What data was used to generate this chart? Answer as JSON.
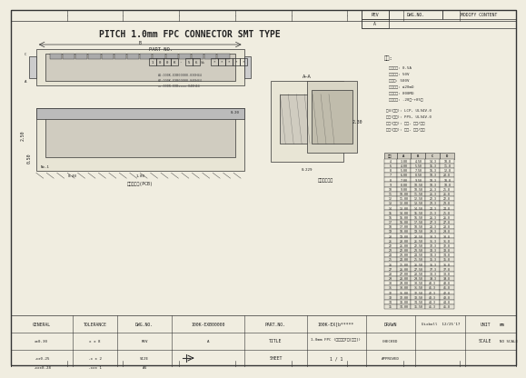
{
  "title": "PITCH 1.0mm FPC CONNECTOR SMT TYPE",
  "bg_color": "#f0ede0",
  "border_color": "#333333",
  "specs": [
    "额定电流: 0.5A",
    "额定电压: 50V",
    "耐电压: 500V",
    "接触电阻: ≤20mΩ",
    "绝缘电阻: 800MΩ",
    "工作温度: -20℃~+85℃"
  ],
  "materials": [
    "富4(材料): LCP, UL94V-0",
    "富体(材料): PPS, UL94V-0",
    "端子(材料): 黄铜, 锑銀/错金",
    "夹片(材料): 黄铜, 锑銀/错金"
  ],
  "table_header": [
    "数量",
    "A",
    "B",
    "C",
    "D"
  ],
  "table_data": [
    [
      "4",
      "3.00",
      "4.50",
      "14.3",
      "18.8"
    ],
    [
      "6",
      "4.00",
      "5.50",
      "15.3",
      "11.8"
    ],
    [
      "8",
      "5.00",
      "7.50",
      "16.3",
      "12.8"
    ],
    [
      "7",
      "6.00",
      "8.50",
      "18.3",
      "20.8"
    ],
    [
      "8",
      "7.00",
      "9.50",
      "18.3",
      "18.8"
    ],
    [
      "9",
      "8.00",
      "10.50",
      "18.3",
      "18.8"
    ],
    [
      "10",
      "9.00",
      "10.50",
      "21.3",
      "25.8"
    ],
    [
      "11",
      "10.00",
      "11.50",
      "21.3",
      "21.8"
    ],
    [
      "12",
      "11.00",
      "12.50",
      "22.3",
      "22.8"
    ],
    [
      "13",
      "12.00",
      "13.50",
      "23.3",
      "23.8"
    ],
    [
      "14",
      "13.00",
      "14.50",
      "24.3",
      "24.8"
    ],
    [
      "15",
      "14.00",
      "15.50",
      "25.3",
      "25.8"
    ],
    [
      "16",
      "15.00",
      "16.50",
      "26.3",
      "26.8"
    ],
    [
      "17",
      "16.00",
      "17.50",
      "27.3",
      "27.8"
    ],
    [
      "18",
      "17.00",
      "18.50",
      "28.3",
      "28.8"
    ],
    [
      "19",
      "18.00",
      "19.50",
      "29.3",
      "29.8"
    ],
    [
      "20",
      "19.00",
      "20.50",
      "30.3",
      "30.8"
    ],
    [
      "21",
      "20.00",
      "21.50",
      "31.3",
      "31.8"
    ],
    [
      "22",
      "21.00",
      "22.50",
      "32.3",
      "32.8"
    ],
    [
      "23",
      "22.00",
      "23.50",
      "33.3",
      "33.8"
    ],
    [
      "24",
      "23.00",
      "24.50",
      "34.3",
      "34.8"
    ],
    [
      "25",
      "24.00",
      "25.50",
      "35.3",
      "35.8"
    ],
    [
      "26",
      "25.00",
      "26.50",
      "36.3",
      "36.8"
    ],
    [
      "27",
      "26.00",
      "27.50",
      "37.3",
      "37.8"
    ],
    [
      "28",
      "27.00",
      "28.50",
      "38.3",
      "38.8"
    ],
    [
      "29",
      "28.00",
      "29.50",
      "39.3",
      "39.8"
    ],
    [
      "30",
      "29.00",
      "30.50",
      "40.3",
      "40.8"
    ],
    [
      "31",
      "30.00",
      "31.50",
      "41.3",
      "41.8"
    ],
    [
      "32",
      "31.00",
      "32.50",
      "42.3",
      "42.8"
    ],
    [
      "33",
      "32.00",
      "33.50",
      "43.3",
      "43.8"
    ],
    [
      "34",
      "33.00",
      "34.50",
      "44.3",
      "44.8"
    ],
    [
      "35",
      "34.00",
      "35.50",
      "45.3",
      "45.8"
    ]
  ],
  "footer_left": [
    [
      "GENERAL",
      "TOLERANCE",
      "DWG.NO.",
      "100K-EXB00000"
    ],
    [
      "x±0.30",
      "x ± 8",
      "REV",
      "A"
    ],
    [
      ".x±0.25",
      ".x ± 2",
      "SIZE",
      ""
    ],
    [
      ".xx±0.28",
      ".xx± 1",
      "A4",
      ""
    ]
  ],
  "footer_part": [
    "PART.NO.",
    "100K-EX[b*****"
  ],
  "footer_title": [
    "TITLE",
    "1.0mm FPC (半包下接T型[正建])",
    "CHECKED"
  ],
  "footer_sheet": [
    "SHEET",
    "1 / 1",
    "APPROVED"
  ],
  "footer_drawn": [
    "DRAWN",
    "Uixboll",
    "12/25'17"
  ],
  "footer_unit": [
    "UNIT",
    "mm",
    "SCALE",
    "NO SCALE"
  ],
  "part_no_label": "PART NO.",
  "note_label": "备注:",
  "section_label": "A—A"
}
